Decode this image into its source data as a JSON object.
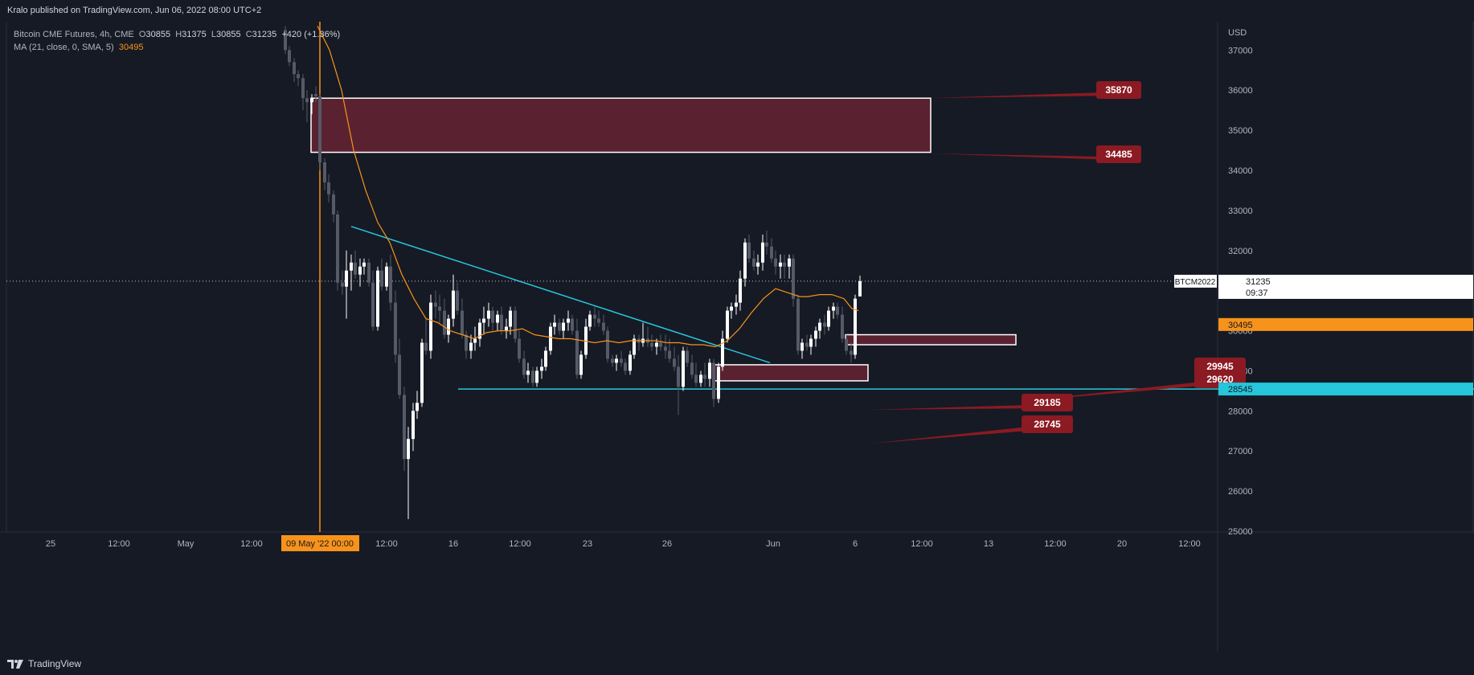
{
  "header": {
    "published": "Kralo published on TradingView.com, Jun 06, 2022 08:00 UTC+2"
  },
  "legend": {
    "symbol": "Bitcoin CME Futures, 4h, CME",
    "o_label": "O",
    "o": "30855",
    "h_label": "H",
    "h": "31375",
    "l_label": "L",
    "l": "30855",
    "c_label": "C",
    "c": "31235",
    "change": "+420 (+1.36%)",
    "ma_label": "MA (21, close, 0, SMA, 5)",
    "ma_value": "30495"
  },
  "footer": {
    "brand": "TradingView"
  },
  "colors": {
    "background": "#161a25",
    "grid": "#1f2330",
    "candle_up": "#ffffff",
    "candle_down": "#555a66",
    "ma": "#f7931a",
    "trend": "#26c6da",
    "zone_fill": "#5a2230",
    "zone_border": "#ffffff",
    "callout": "#8b1a22",
    "vline": "#f7931a"
  },
  "chart_data": {
    "type": "candlestick",
    "title": "Bitcoin CME Futures, 4h, CME",
    "currency_label": "USD",
    "ylim": [
      25000,
      37500
    ],
    "y_ticks": [
      25000,
      26000,
      27000,
      28000,
      29000,
      30000,
      31000,
      32000,
      33000,
      34000,
      35000,
      36000,
      37000
    ],
    "x_ticks": [
      "25",
      "12:00",
      "May",
      "12:00",
      "09 May '22  00:00",
      "12:00",
      "16",
      "12:00",
      "23",
      "26",
      "Jun",
      "6",
      "12:00",
      "13",
      "12:00",
      "20",
      "12:00"
    ],
    "x_tick_index": [
      0,
      3,
      6,
      9,
      12,
      15,
      18,
      21,
      24,
      27,
      32,
      36,
      39,
      42,
      45,
      48,
      51
    ],
    "highlight_x_tick": 4,
    "current_price": {
      "symbol": "BTCM2022",
      "value": "31235",
      "countdown": "09:37"
    },
    "ma_price_label": "30495",
    "support_label": "28545",
    "zones": [
      {
        "top": 35800,
        "bottom": 34450,
        "x_from": 387,
        "x_to": 1158,
        "label_top": "35870",
        "label_bottom": "34485"
      },
      {
        "top": 29900,
        "bottom": 29650,
        "x_from": 1052,
        "x_to": 1264,
        "label_top": "29945",
        "label_bottom": "29620"
      },
      {
        "top": 29150,
        "bottom": 28750,
        "x_from": 888,
        "x_to": 1080,
        "label_top": "29185",
        "label_bottom": "28745"
      }
    ],
    "trendline": {
      "x1": 437,
      "y1": 32600,
      "x2": 958,
      "y2": 29200
    },
    "support_line": {
      "x1": 570,
      "value": 28545
    },
    "vline_x": 398,
    "ma_series": [
      [
        395,
        37600
      ],
      [
        410,
        37000
      ],
      [
        425,
        36000
      ],
      [
        440,
        34500
      ],
      [
        455,
        33500
      ],
      [
        470,
        32700
      ],
      [
        485,
        32200
      ],
      [
        500,
        31400
      ],
      [
        515,
        30800
      ],
      [
        530,
        30300
      ],
      [
        545,
        30200
      ],
      [
        560,
        30000
      ],
      [
        575,
        29900
      ],
      [
        590,
        29800
      ],
      [
        605,
        29950
      ],
      [
        620,
        30000
      ],
      [
        635,
        30000
      ],
      [
        650,
        30050
      ],
      [
        665,
        29900
      ],
      [
        680,
        29850
      ],
      [
        695,
        29800
      ],
      [
        710,
        29800
      ],
      [
        725,
        29750
      ],
      [
        740,
        29700
      ],
      [
        755,
        29750
      ],
      [
        770,
        29700
      ],
      [
        785,
        29750
      ],
      [
        800,
        29750
      ],
      [
        815,
        29750
      ],
      [
        830,
        29700
      ],
      [
        845,
        29700
      ],
      [
        860,
        29650
      ],
      [
        875,
        29650
      ],
      [
        890,
        29600
      ],
      [
        905,
        29750
      ],
      [
        920,
        30050
      ],
      [
        935,
        30450
      ],
      [
        950,
        30800
      ],
      [
        965,
        31050
      ],
      [
        980,
        30950
      ],
      [
        995,
        30850
      ],
      [
        1005,
        30850
      ],
      [
        1020,
        30900
      ],
      [
        1035,
        30900
      ],
      [
        1050,
        30800
      ],
      [
        1060,
        30550
      ],
      [
        1068,
        30500
      ]
    ],
    "candles": [
      [
        355,
        37500,
        37600,
        36900,
        37000
      ],
      [
        360,
        37000,
        37100,
        36600,
        36700
      ],
      [
        366,
        36700,
        36800,
        36200,
        36400
      ],
      [
        371,
        36400,
        36500,
        36100,
        36300
      ],
      [
        377,
        36300,
        36400,
        35500,
        35800
      ],
      [
        382,
        35800,
        36000,
        35200,
        35700
      ],
      [
        388,
        35700,
        35900,
        35400,
        35800
      ],
      [
        393,
        35900,
        36100,
        35700,
        35850
      ],
      [
        398,
        35850,
        35900,
        34000,
        34200
      ],
      [
        404,
        34200,
        34300,
        33500,
        33700
      ],
      [
        409,
        33700,
        33900,
        33200,
        33400
      ],
      [
        415,
        33400,
        33500,
        32700,
        32900
      ],
      [
        420,
        32900,
        33000,
        31000,
        31200
      ],
      [
        426,
        31200,
        31500,
        30900,
        31100
      ],
      [
        431,
        31100,
        32000,
        30300,
        31500
      ],
      [
        437,
        31500,
        31900,
        31000,
        31700
      ],
      [
        442,
        31700,
        32000,
        31300,
        31400
      ],
      [
        448,
        31400,
        31800,
        31100,
        31600
      ],
      [
        453,
        31600,
        31800,
        31400,
        31700
      ],
      [
        459,
        31700,
        31800,
        31100,
        31200
      ],
      [
        464,
        31200,
        31500,
        30000,
        30100
      ],
      [
        470,
        30100,
        31600,
        30000,
        31500
      ],
      [
        475,
        31500,
        31800,
        31000,
        31100
      ],
      [
        481,
        31100,
        31700,
        31000,
        31600
      ],
      [
        486,
        31600,
        31900,
        30500,
        30700
      ],
      [
        492,
        30700,
        31000,
        29200,
        29400
      ],
      [
        497,
        29400,
        29800,
        28300,
        28400
      ],
      [
        503,
        28400,
        28600,
        26500,
        26800
      ],
      [
        508,
        26800,
        27600,
        25300,
        27300
      ],
      [
        514,
        27300,
        28200,
        27000,
        28000
      ],
      [
        519,
        28000,
        28500,
        27800,
        28200
      ],
      [
        525,
        28200,
        29800,
        28100,
        29700
      ],
      [
        530,
        29700,
        30300,
        29400,
        29500
      ],
      [
        536,
        29500,
        30900,
        29300,
        30700
      ],
      [
        542,
        30700,
        31000,
        30300,
        30600
      ],
      [
        547,
        30600,
        30900,
        30200,
        30500
      ],
      [
        553,
        30500,
        30800,
        29800,
        29900
      ],
      [
        558,
        29900,
        30400,
        29700,
        30300
      ],
      [
        564,
        30300,
        31400,
        30100,
        31000
      ],
      [
        569,
        31000,
        31200,
        30400,
        30500
      ],
      [
        575,
        30500,
        30800,
        29800,
        29900
      ],
      [
        580,
        29900,
        30000,
        29300,
        29500
      ],
      [
        586,
        29500,
        29900,
        29300,
        29700
      ],
      [
        591,
        29700,
        30100,
        29500,
        29800
      ],
      [
        597,
        29800,
        30300,
        29600,
        30200
      ],
      [
        602,
        30200,
        30600,
        29900,
        30300
      ],
      [
        608,
        30300,
        30700,
        30100,
        30500
      ],
      [
        613,
        30500,
        30600,
        30000,
        30200
      ],
      [
        619,
        30200,
        30500,
        30000,
        30400
      ],
      [
        624,
        30400,
        30600,
        29900,
        30000
      ],
      [
        630,
        30000,
        30300,
        29800,
        30100
      ],
      [
        635,
        30100,
        30600,
        29900,
        30500
      ],
      [
        641,
        30500,
        30600,
        29700,
        29800
      ],
      [
        646,
        29800,
        30000,
        29200,
        29300
      ],
      [
        652,
        29300,
        29500,
        28800,
        28900
      ],
      [
        657,
        28900,
        29200,
        28700,
        29000
      ],
      [
        663,
        29000,
        29100,
        28600,
        28700
      ],
      [
        668,
        28700,
        29100,
        28600,
        29000
      ],
      [
        674,
        29000,
        29300,
        28800,
        29100
      ],
      [
        679,
        29100,
        29600,
        29000,
        29500
      ],
      [
        685,
        29500,
        30200,
        29400,
        30100
      ],
      [
        690,
        30100,
        30400,
        29900,
        30200
      ],
      [
        696,
        30200,
        30300,
        29900,
        30000
      ],
      [
        701,
        30000,
        30300,
        29800,
        30200
      ],
      [
        707,
        30200,
        30500,
        30000,
        30300
      ],
      [
        712,
        30300,
        30400,
        29900,
        30000
      ],
      [
        718,
        30000,
        30300,
        28800,
        28900
      ],
      [
        723,
        28900,
        29500,
        28800,
        29400
      ],
      [
        729,
        29400,
        30300,
        29300,
        30100
      ],
      [
        734,
        30100,
        30500,
        30000,
        30400
      ],
      [
        740,
        30400,
        30600,
        30100,
        30300
      ],
      [
        745,
        30300,
        30500,
        30100,
        30200
      ],
      [
        751,
        30200,
        30400,
        29900,
        30000
      ],
      [
        756,
        30000,
        30100,
        29200,
        29300
      ],
      [
        762,
        29300,
        29400,
        29100,
        29200
      ],
      [
        767,
        29200,
        29400,
        29000,
        29300
      ],
      [
        773,
        29300,
        29500,
        29100,
        29200
      ],
      [
        778,
        29200,
        29300,
        28900,
        29000
      ],
      [
        784,
        29000,
        29500,
        28900,
        29400
      ],
      [
        789,
        29400,
        29900,
        29300,
        29800
      ],
      [
        795,
        29800,
        29900,
        29500,
        29700
      ],
      [
        800,
        29700,
        30200,
        29600,
        29800
      ],
      [
        806,
        29800,
        30100,
        29600,
        29700
      ],
      [
        811,
        29700,
        29900,
        29500,
        29600
      ],
      [
        817,
        29600,
        29800,
        29400,
        29700
      ],
      [
        822,
        29700,
        29900,
        29500,
        29600
      ],
      [
        828,
        29600,
        29900,
        29300,
        29500
      ],
      [
        833,
        29500,
        29800,
        29200,
        29300
      ],
      [
        839,
        29300,
        29600,
        29000,
        29100
      ],
      [
        844,
        29100,
        29400,
        27900,
        28600
      ],
      [
        850,
        28600,
        29600,
        28500,
        29500
      ],
      [
        855,
        29500,
        29600,
        29100,
        29200
      ],
      [
        861,
        29200,
        29400,
        28800,
        28900
      ],
      [
        866,
        28900,
        29200,
        28600,
        28700
      ],
      [
        872,
        28700,
        29000,
        28600,
        28900
      ],
      [
        877,
        28900,
        29200,
        28600,
        28800
      ],
      [
        883,
        28800,
        29300,
        28600,
        29200
      ],
      [
        888,
        29200,
        29300,
        28100,
        28300
      ],
      [
        894,
        28300,
        29200,
        28200,
        29100
      ],
      [
        899,
        29100,
        30000,
        29000,
        29800
      ],
      [
        905,
        29800,
        30600,
        29700,
        30500
      ],
      [
        910,
        30500,
        30700,
        30300,
        30600
      ],
      [
        916,
        30600,
        30900,
        30400,
        30700
      ],
      [
        921,
        30700,
        31500,
        30500,
        31300
      ],
      [
        927,
        31300,
        32300,
        31100,
        32200
      ],
      [
        932,
        32200,
        32400,
        31700,
        31800
      ],
      [
        938,
        31800,
        32000,
        31500,
        31600
      ],
      [
        943,
        31600,
        31900,
        31400,
        31700
      ],
      [
        949,
        31700,
        32400,
        31500,
        32200
      ],
      [
        954,
        32200,
        32500,
        31900,
        32100
      ],
      [
        960,
        32100,
        32300,
        31700,
        31800
      ],
      [
        965,
        31800,
        32000,
        31400,
        31600
      ],
      [
        971,
        31600,
        31900,
        31300,
        31700
      ],
      [
        976,
        31700,
        31900,
        31300,
        31600
      ],
      [
        982,
        31600,
        31900,
        31300,
        31800
      ],
      [
        987,
        31800,
        31900,
        30600,
        30800
      ],
      [
        993,
        30800,
        30900,
        29400,
        29500
      ],
      [
        998,
        29500,
        29800,
        29300,
        29700
      ],
      [
        1004,
        29700,
        29900,
        29500,
        29600
      ],
      [
        1009,
        29600,
        29900,
        29400,
        29800
      ],
      [
        1015,
        29800,
        30100,
        29600,
        30000
      ],
      [
        1020,
        30000,
        30300,
        29800,
        30200
      ],
      [
        1026,
        30200,
        30400,
        29900,
        30100
      ],
      [
        1031,
        30100,
        30600,
        30000,
        30500
      ],
      [
        1037,
        30500,
        30700,
        30300,
        30600
      ],
      [
        1042,
        30600,
        30700,
        30300,
        30400
      ],
      [
        1048,
        30400,
        30600,
        29700,
        29800
      ],
      [
        1053,
        29800,
        29900,
        29400,
        29500
      ],
      [
        1059,
        29500,
        29700,
        29200,
        29400
      ],
      [
        1064,
        29400,
        30900,
        29300,
        30800
      ],
      [
        1070,
        30855,
        31375,
        30855,
        31235
      ]
    ]
  }
}
